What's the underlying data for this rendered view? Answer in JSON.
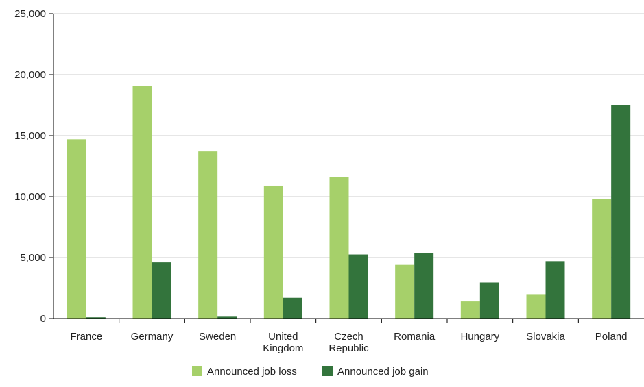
{
  "chart_data": {
    "type": "bar",
    "categories": [
      [
        "France"
      ],
      [
        "Germany"
      ],
      [
        "Sweden"
      ],
      [
        "United",
        "Kingdom"
      ],
      [
        "Czech",
        "Republic"
      ],
      [
        "Romania"
      ],
      [
        "Hungary"
      ],
      [
        "Slovakia"
      ],
      [
        "Poland"
      ]
    ],
    "series": [
      {
        "name": "Announced job loss",
        "color": "#a6d06a",
        "values": [
          14700,
          19100,
          13700,
          10900,
          11600,
          4400,
          1400,
          2000,
          9800
        ]
      },
      {
        "name": "Announced job gain",
        "color": "#33743c",
        "values": [
          100,
          4600,
          150,
          1700,
          5250,
          5350,
          2950,
          4700,
          17500
        ]
      }
    ],
    "ylim": [
      0,
      25000
    ],
    "yticks": [
      0,
      5000,
      10000,
      15000,
      20000,
      25000
    ],
    "ytick_labels": [
      "0",
      "5,000",
      "10,000",
      "15,000",
      "20,000",
      "25,000"
    ],
    "grid": true,
    "legend_position": "bottom-center",
    "title": "",
    "xlabel": "",
    "ylabel": ""
  }
}
